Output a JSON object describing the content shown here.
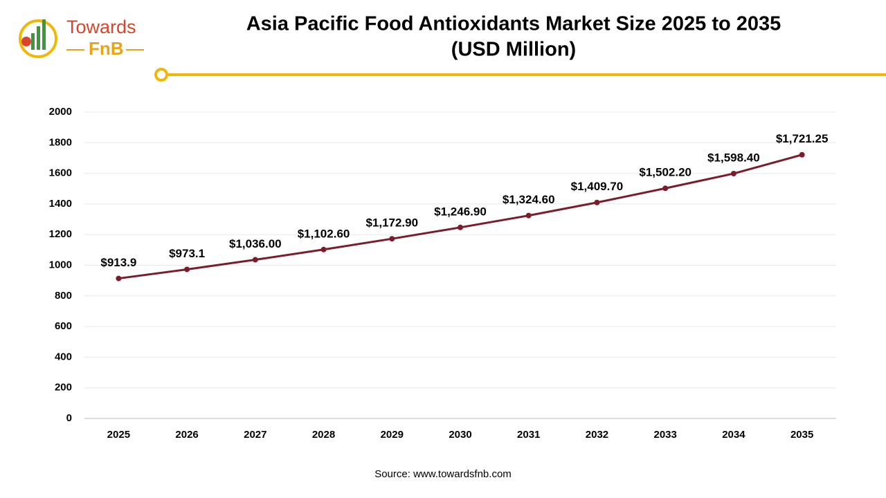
{
  "logo": {
    "top": "Towards",
    "bottom": "FnB"
  },
  "chart_data": {
    "type": "line",
    "title": [
      "Asia Pacific Food Antioxidants Market Size 2025 to 2035",
      "(USD Million)"
    ],
    "categories": [
      "2025",
      "2026",
      "2027",
      "2028",
      "2029",
      "2030",
      "2031",
      "2032",
      "2033",
      "2034",
      "2035"
    ],
    "values": [
      913.9,
      973.1,
      1036.0,
      1102.6,
      1172.9,
      1246.9,
      1324.6,
      1409.7,
      1502.2,
      1598.4,
      1721.25
    ],
    "value_labels": [
      "$913.9",
      "$973.1",
      "$1,036.00",
      "$1,102.60",
      "$1,172.90",
      "$1,246.90",
      "$1,324.60",
      "$1,409.70",
      "$1,502.20",
      "$1,598.40",
      "$1,721.25"
    ],
    "color": "#7b1c2a",
    "ylim": [
      0,
      2000
    ],
    "yticks": [
      0,
      200,
      400,
      600,
      800,
      1000,
      1200,
      1400,
      1600,
      1800,
      2000
    ],
    "grid": true,
    "source": "Source: www.towardsfnb.com"
  }
}
